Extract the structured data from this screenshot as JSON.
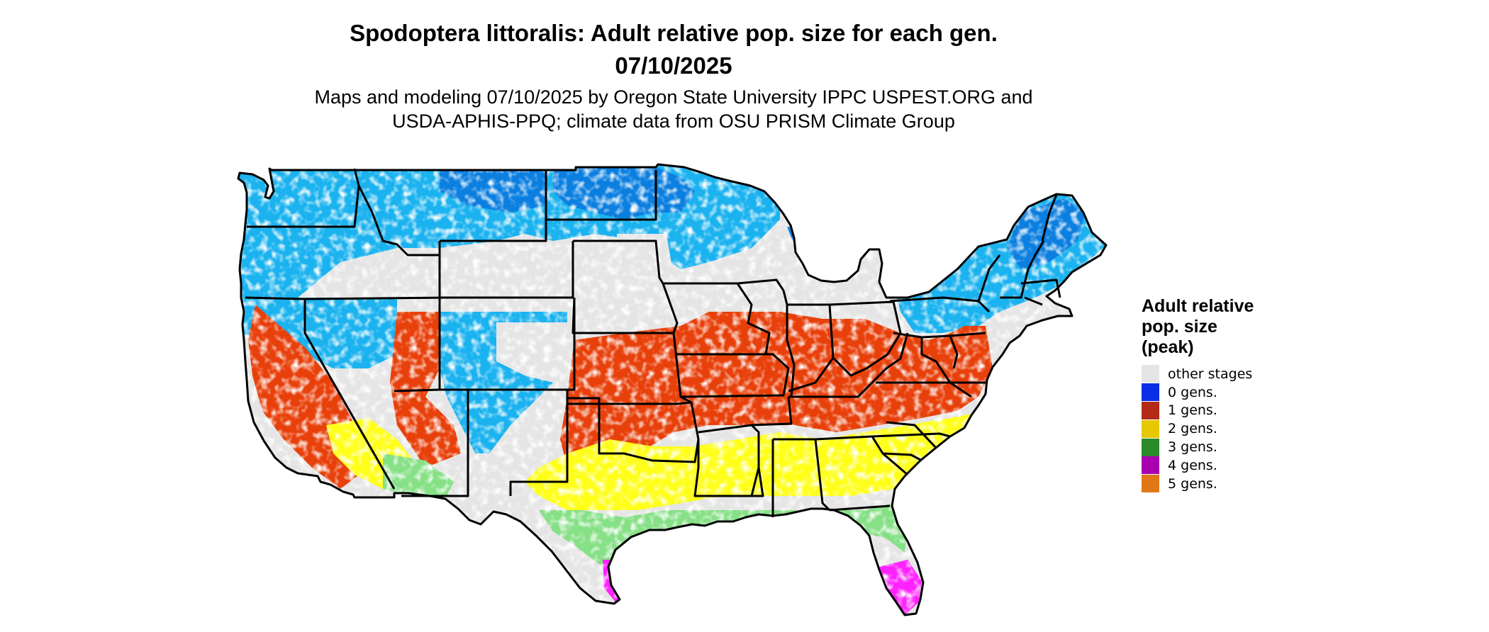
{
  "title_line1": "Spodoptera littoralis: Adult relative pop. size for each gen.",
  "title_line2": "07/10/2025",
  "subtitle_line1": "Maps and modeling 07/10/2025 by Oregon State University IPPC USPEST.ORG and",
  "subtitle_line2": "USDA-APHIS-PPQ; climate data from OSU PRISM Climate Group",
  "legend": {
    "title_line1": "Adult relative",
    "title_line2": "pop. size",
    "title_line3": "(peak)",
    "items": [
      {
        "label": "other stages",
        "color": "#e5e5e5"
      },
      {
        "label": "0 gens.",
        "color": "#0a2ee6"
      },
      {
        "label": "1 gens.",
        "color": "#b32a16"
      },
      {
        "label": "2 gens.",
        "color": "#e6c800"
      },
      {
        "label": "3 gens.",
        "color": "#2a8a2a"
      },
      {
        "label": "4 gens.",
        "color": "#a800b0"
      },
      {
        "label": "5 gens.",
        "color": "#e07818"
      }
    ]
  },
  "map_colors": {
    "background": "#e5e5e5",
    "gen0_light": "#1ab2ef",
    "gen0_dark": "#0b7fe0",
    "gen1": "#e8400a",
    "gen2": "#ffff1a",
    "gen3": "#86e086",
    "gen4": "#ff22ff",
    "border": "#000000"
  }
}
